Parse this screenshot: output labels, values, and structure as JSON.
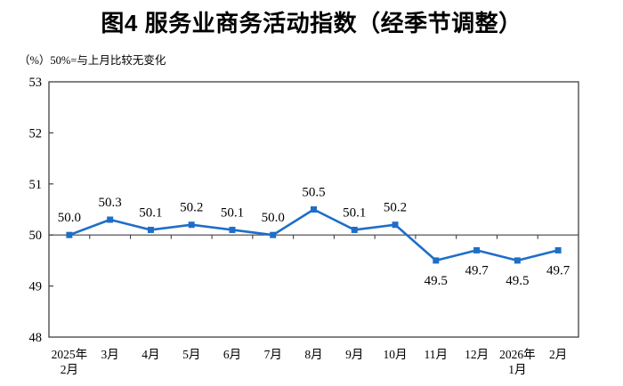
{
  "header": {
    "title": "图4 服务业商务活动指数（经季节调整）",
    "unit_note": "（%）50%=与上月比较无变化"
  },
  "chart_data": {
    "type": "line",
    "title": "图4 服务业商务活动指数（经季节调整）",
    "subtitle": "（%）50%=与上月比较无变化",
    "unit": "%",
    "categories": [
      [
        "2025年",
        "2月"
      ],
      [
        "3月"
      ],
      [
        "4月"
      ],
      [
        "5月"
      ],
      [
        "6月"
      ],
      [
        "7月"
      ],
      [
        "8月"
      ],
      [
        "9月"
      ],
      [
        "10月"
      ],
      [
        "11月"
      ],
      [
        "12月"
      ],
      [
        "2026年",
        "1月"
      ],
      [
        "2月"
      ]
    ],
    "values": [
      50.0,
      50.3,
      50.1,
      50.2,
      50.1,
      50.0,
      50.5,
      50.1,
      50.2,
      49.5,
      49.7,
      49.5,
      49.7
    ],
    "point_labels": [
      "50.0",
      "50.3",
      "50.1",
      "50.2",
      "50.1",
      "50.0",
      "50.5",
      "50.1",
      "50.2",
      "49.5",
      "49.7",
      "49.5",
      "49.7"
    ],
    "ylim": [
      48,
      53
    ],
    "y_ticks": [
      48,
      49,
      50,
      51,
      52,
      53
    ],
    "baseline_value": 50,
    "grid": "baseline-only",
    "legend": "none",
    "colors": {
      "line": "#1e6ec8",
      "marker": "#1e6ec8",
      "axis": "#404040",
      "baseline": "#404040",
      "label": "#000000"
    }
  }
}
